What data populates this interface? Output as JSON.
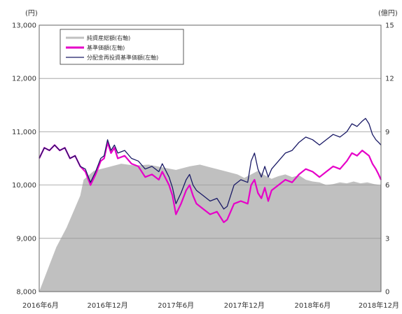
{
  "chart_data": {
    "type": "line",
    "left_unit": "(円)",
    "right_unit": "(億円)",
    "left_axis": {
      "min": 8000,
      "max": 13000,
      "ticks": [
        "8,000",
        "9,000",
        "10,000",
        "11,000",
        "12,000",
        "13,000"
      ]
    },
    "right_axis": {
      "min": 0,
      "max": 15,
      "ticks": [
        "0",
        "3",
        "6",
        "9",
        "12",
        "15"
      ]
    },
    "x_labels": [
      "2016年6月",
      "2016年12月",
      "2017年6月",
      "2017年12月",
      "2018年6月",
      "2018年12月"
    ],
    "grid": true,
    "legend_position": "top-left",
    "colors": {
      "area": "#c0c0c0",
      "nav": "#e600c8",
      "reinvested": "#1a1a66",
      "grid": "#999999"
    },
    "series": [
      {
        "name": "純資産総額(右軸)",
        "kind": "area",
        "axis": "right",
        "points": [
          [
            0,
            0
          ],
          [
            3,
            1.5
          ],
          [
            5,
            2.5
          ],
          [
            8,
            3.6
          ],
          [
            10,
            4.5
          ],
          [
            12,
            5.4
          ],
          [
            13,
            6.3
          ],
          [
            16,
            6.8
          ],
          [
            20,
            7.0
          ],
          [
            24,
            7.2
          ],
          [
            28,
            7.1
          ],
          [
            32,
            7.15
          ],
          [
            36,
            7.0
          ],
          [
            40,
            6.85
          ],
          [
            44,
            7.05
          ],
          [
            47,
            7.15
          ],
          [
            50,
            7.0
          ],
          [
            54,
            6.8
          ],
          [
            58,
            6.6
          ],
          [
            60,
            6.4
          ],
          [
            62,
            6.6
          ],
          [
            64,
            6.8
          ],
          [
            66,
            6.55
          ],
          [
            68,
            6.35
          ],
          [
            70,
            6.5
          ],
          [
            72,
            6.6
          ],
          [
            74,
            6.45
          ],
          [
            76,
            6.55
          ],
          [
            78,
            6.3
          ],
          [
            80,
            6.2
          ],
          [
            82,
            6.15
          ],
          [
            84,
            6.0
          ],
          [
            86,
            6.05
          ],
          [
            88,
            6.15
          ],
          [
            90,
            6.1
          ],
          [
            92,
            6.2
          ],
          [
            94,
            6.1
          ],
          [
            96,
            6.15
          ],
          [
            98,
            6.05
          ],
          [
            100,
            6.0
          ]
        ]
      },
      {
        "name": "基準価額(左軸)",
        "kind": "line",
        "axis": "left",
        "points": [
          [
            0,
            10500
          ],
          [
            1.5,
            10700
          ],
          [
            3,
            10650
          ],
          [
            4.5,
            10750
          ],
          [
            6,
            10650
          ],
          [
            7.5,
            10700
          ],
          [
            9,
            10500
          ],
          [
            10.5,
            10550
          ],
          [
            12,
            10350
          ],
          [
            13.5,
            10250
          ],
          [
            15,
            10000
          ],
          [
            16.5,
            10200
          ],
          [
            18,
            10450
          ],
          [
            19,
            10500
          ],
          [
            20,
            10800
          ],
          [
            21,
            10600
          ],
          [
            22,
            10700
          ],
          [
            23,
            10500
          ],
          [
            25,
            10550
          ],
          [
            27,
            10400
          ],
          [
            29,
            10350
          ],
          [
            31,
            10150
          ],
          [
            33,
            10200
          ],
          [
            35,
            10100
          ],
          [
            36,
            10250
          ],
          [
            38,
            10000
          ],
          [
            39,
            9800
          ],
          [
            40,
            9450
          ],
          [
            41.5,
            9650
          ],
          [
            43,
            9900
          ],
          [
            44,
            10000
          ],
          [
            45,
            9800
          ],
          [
            46,
            9650
          ],
          [
            48,
            9550
          ],
          [
            50,
            9450
          ],
          [
            52,
            9500
          ],
          [
            54,
            9300
          ],
          [
            55,
            9350
          ],
          [
            56,
            9500
          ],
          [
            57,
            9650
          ],
          [
            59,
            9700
          ],
          [
            61,
            9650
          ],
          [
            62,
            10000
          ],
          [
            63,
            10100
          ],
          [
            64,
            9850
          ],
          [
            65,
            9750
          ],
          [
            66,
            9950
          ],
          [
            67,
            9700
          ],
          [
            68,
            9900
          ],
          [
            70,
            10000
          ],
          [
            72,
            10100
          ],
          [
            74,
            10050
          ],
          [
            76,
            10200
          ],
          [
            78,
            10300
          ],
          [
            80,
            10250
          ],
          [
            82,
            10150
          ],
          [
            84,
            10250
          ],
          [
            86,
            10350
          ],
          [
            88,
            10300
          ],
          [
            90,
            10450
          ],
          [
            91.5,
            10600
          ],
          [
            93,
            10550
          ],
          [
            94.5,
            10650
          ],
          [
            95.5,
            10600
          ],
          [
            96.5,
            10550
          ],
          [
            97.5,
            10400
          ],
          [
            98.5,
            10300
          ],
          [
            99.3,
            10200
          ],
          [
            100,
            10100
          ]
        ]
      },
      {
        "name": "分配金再投資基準価額(左軸)",
        "kind": "line",
        "axis": "left",
        "points": [
          [
            0,
            10500
          ],
          [
            1.5,
            10700
          ],
          [
            3,
            10650
          ],
          [
            4.5,
            10750
          ],
          [
            6,
            10650
          ],
          [
            7.5,
            10700
          ],
          [
            9,
            10500
          ],
          [
            10.5,
            10550
          ],
          [
            12,
            10350
          ],
          [
            13.5,
            10300
          ],
          [
            15,
            10050
          ],
          [
            16.5,
            10250
          ],
          [
            18,
            10500
          ],
          [
            19,
            10550
          ],
          [
            20,
            10850
          ],
          [
            21,
            10650
          ],
          [
            22,
            10750
          ],
          [
            23,
            10600
          ],
          [
            25,
            10650
          ],
          [
            27,
            10500
          ],
          [
            29,
            10450
          ],
          [
            31,
            10300
          ],
          [
            33,
            10350
          ],
          [
            35,
            10250
          ],
          [
            36,
            10400
          ],
          [
            38,
            10150
          ],
          [
            39,
            9950
          ],
          [
            40,
            9650
          ],
          [
            41.5,
            9850
          ],
          [
            43,
            10100
          ],
          [
            44,
            10200
          ],
          [
            45,
            10000
          ],
          [
            46,
            9900
          ],
          [
            48,
            9800
          ],
          [
            50,
            9700
          ],
          [
            52,
            9750
          ],
          [
            54,
            9550
          ],
          [
            55,
            9600
          ],
          [
            56,
            9800
          ],
          [
            57,
            10000
          ],
          [
            59,
            10100
          ],
          [
            61,
            10050
          ],
          [
            62,
            10450
          ],
          [
            63,
            10600
          ],
          [
            64,
            10300
          ],
          [
            65,
            10150
          ],
          [
            66,
            10350
          ],
          [
            67,
            10150
          ],
          [
            68,
            10300
          ],
          [
            70,
            10450
          ],
          [
            72,
            10600
          ],
          [
            74,
            10650
          ],
          [
            76,
            10800
          ],
          [
            78,
            10900
          ],
          [
            80,
            10850
          ],
          [
            82,
            10750
          ],
          [
            84,
            10850
          ],
          [
            86,
            10950
          ],
          [
            88,
            10900
          ],
          [
            90,
            11000
          ],
          [
            91.5,
            11150
          ],
          [
            93,
            11100
          ],
          [
            94.5,
            11200
          ],
          [
            95.5,
            11250
          ],
          [
            96.5,
            11150
          ],
          [
            97.5,
            10950
          ],
          [
            98.5,
            10850
          ],
          [
            99.3,
            10800
          ],
          [
            100,
            10750
          ]
        ]
      }
    ]
  }
}
